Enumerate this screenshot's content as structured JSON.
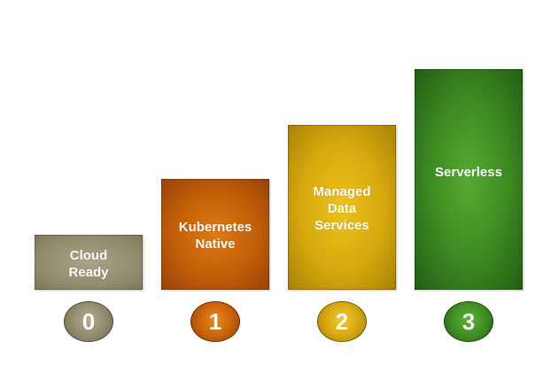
{
  "steps": [
    {
      "number": "0",
      "label": "Cloud\nReady",
      "color": "#8f8a6c"
    },
    {
      "number": "1",
      "label": "Kubernetes\nNative",
      "color": "#c25e08"
    },
    {
      "number": "2",
      "label": "Managed\nData\nServices",
      "color": "#d6a90e"
    },
    {
      "number": "3",
      "label": "Serverless",
      "color": "#3e8c22"
    }
  ]
}
